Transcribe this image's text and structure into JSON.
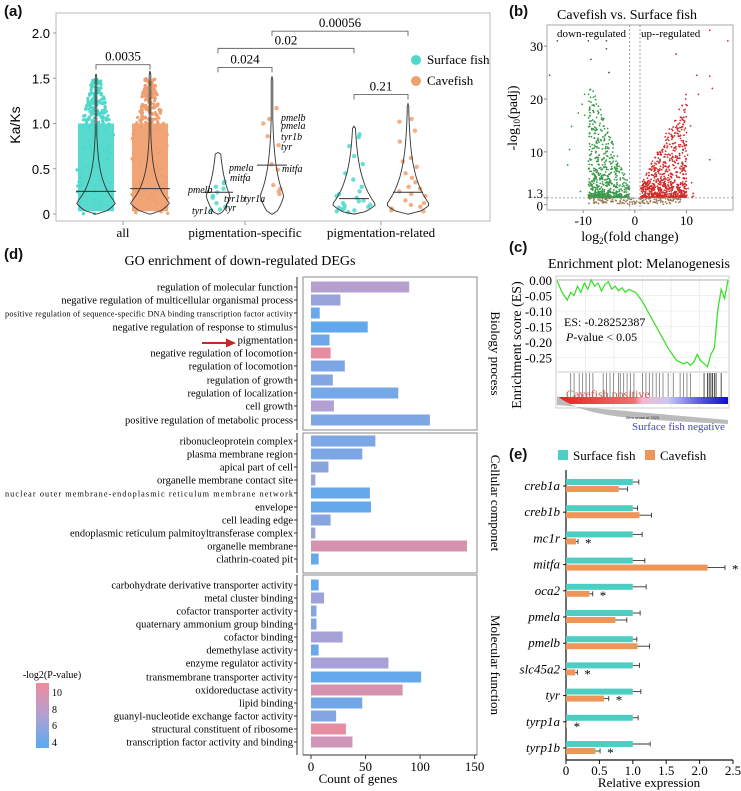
{
  "chart_data": [
    {
      "id": "a",
      "panel_label": "(a)",
      "type": "violin",
      "ylabel": "Ka/Ks",
      "ylim": [
        0,
        2.2
      ],
      "yticks": [
        "0",
        "0.5",
        "1.0",
        "1.5",
        "2.0"
      ],
      "ytick_values": [
        0,
        0.5,
        1.0,
        1.5,
        2.0
      ],
      "categories": [
        "all",
        "pigmentation-specific",
        "pigmentation-related"
      ],
      "legend": [
        {
          "name": "Surface fish",
          "color": "#4fd8cc"
        },
        {
          "name": "Cavefish",
          "color": "#f0a070"
        }
      ],
      "legend_position": "right",
      "groups": [
        {
          "category": "all",
          "series": "Surface fish",
          "median": 0.25,
          "max": 1.55
        },
        {
          "category": "all",
          "series": "Cavefish",
          "median": 0.28,
          "max": 1.58
        },
        {
          "category": "pigmentation-specific",
          "series": "Surface fish",
          "median": 0.24,
          "max": 0.68,
          "gene_labels": [
            "pmela",
            "mitfa",
            "pmelb",
            "tyr1b",
            "tyr",
            "tyr1a"
          ],
          "points": [
            0.36,
            0.34,
            0.3,
            0.28,
            0.24,
            0.2,
            0.18,
            0.12,
            0.08,
            0.05,
            0.04
          ]
        },
        {
          "category": "pigmentation-specific",
          "series": "Cavefish",
          "median": 0.54,
          "max": 1.52,
          "gene_labels": [
            "pmelb",
            "pmela",
            "tyr1b",
            "tyr",
            "mitfa",
            "tyr1a"
          ],
          "points": [
            1.17,
            1.05,
            1.0,
            0.86,
            0.76,
            0.55,
            0.49,
            0.32,
            0.28,
            0.25,
            0.22
          ]
        },
        {
          "category": "pigmentation-related",
          "series": "Surface fish",
          "median": 0.17,
          "max": 0.97,
          "points": [
            0.88,
            0.85,
            0.75,
            0.64,
            0.55,
            0.45,
            0.38,
            0.3,
            0.25,
            0.22,
            0.2,
            0.18,
            0.15,
            0.14,
            0.12,
            0.1,
            0.09,
            0.08,
            0.07,
            0.06,
            0.05,
            0.04,
            0.03,
            0.02
          ]
        },
        {
          "category": "pigmentation-related",
          "series": "Cavefish",
          "median": 0.24,
          "max": 1.22,
          "points": [
            1.05,
            1.02,
            0.92,
            0.8,
            0.62,
            0.58,
            0.52,
            0.45,
            0.4,
            0.35,
            0.3,
            0.28,
            0.25,
            0.22,
            0.2,
            0.15,
            0.12,
            0.1,
            0.08,
            0.06,
            0.04,
            0.03
          ]
        }
      ],
      "comparisons": [
        {
          "label": "0.0035",
          "from": "all/Surface fish",
          "to": "all/Cavefish",
          "y": 1.65
        },
        {
          "label": "0.024",
          "from": "pigmentation-specific/Surface fish",
          "to": "pigmentation-specific/Cavefish",
          "y": 1.62
        },
        {
          "label": "0.02",
          "from": "pigmentation-specific/Surface fish",
          "to": "pigmentation-related/Surface fish",
          "y": 1.83
        },
        {
          "label": "0.00056",
          "from": "pigmentation-specific/Cavefish",
          "to": "pigmentation-related/Cavefish",
          "y": 2.02
        },
        {
          "label": "0.21",
          "from": "pigmentation-related/Surface fish",
          "to": "pigmentation-related/Cavefish",
          "y": 1.32
        }
      ]
    },
    {
      "id": "b",
      "panel_label": "(b)",
      "type": "scatter",
      "title": "Cavefish vs. Surface fish",
      "xlabel": "log2(fold change)",
      "ylabel": "-log10(padj)",
      "xlim": [
        -17,
        19
      ],
      "ylim": [
        -1,
        34
      ],
      "xticks": [
        "-10",
        "0",
        "10"
      ],
      "xtick_values": [
        -10,
        0,
        10
      ],
      "yticks": [
        "0",
        "1.3",
        "10",
        "20",
        "30"
      ],
      "ytick_values": [
        0,
        1.3,
        10,
        20,
        30
      ],
      "threshold_y": 1.3,
      "threshold_x": [
        -1,
        1
      ],
      "annotations": [
        "down-regulated",
        "up--regulated"
      ],
      "colors": {
        "down": "#3a9a4a",
        "up": "#d42a2a",
        "ns": "#9a7a52"
      },
      "outliers": [
        {
          "x": -15,
          "y": 31
        },
        {
          "x": -9,
          "y": 31
        },
        {
          "x": -5.5,
          "y": 31
        },
        {
          "x": -5.5,
          "y": 29.5
        },
        {
          "x": -8.5,
          "y": 27.5
        },
        {
          "x": -16.5,
          "y": 24.5
        },
        {
          "x": -5,
          "y": 25
        },
        {
          "x": 18,
          "y": 31
        },
        {
          "x": 14.5,
          "y": 33
        },
        {
          "x": 8,
          "y": 28.5
        },
        {
          "x": 12,
          "y": 24.5
        },
        {
          "x": 14.5,
          "y": 24.3
        },
        {
          "x": 15,
          "y": 22
        },
        {
          "x": 14.5,
          "y": 8.5
        },
        {
          "x": -13,
          "y": 7.5
        }
      ]
    },
    {
      "id": "c",
      "panel_label": "(c)",
      "type": "line",
      "title": "Enrichment plot: Melanogenesis",
      "ylabel": "Enrichment score (ES)",
      "ylim": [
        -0.3,
        0.01
      ],
      "yticks": [
        "0.00",
        "-0.05",
        "-0.10",
        "-0.15",
        "-0.20",
        "-0.25"
      ],
      "ytick_values": [
        0,
        -0.05,
        -0.1,
        -0.15,
        -0.2,
        -0.25
      ],
      "annotation_es": "ES: -0.28252387",
      "annotation_p": "P-value < 0.05",
      "line_color": "#33dd22",
      "x": [
        0,
        0.03,
        0.06,
        0.08,
        0.1,
        0.12,
        0.14,
        0.16,
        0.18,
        0.2,
        0.22,
        0.24,
        0.26,
        0.28,
        0.3,
        0.32,
        0.34,
        0.36,
        0.38,
        0.4,
        0.42,
        0.44,
        0.46,
        0.5,
        0.55,
        0.6,
        0.65,
        0.7,
        0.72,
        0.74,
        0.76,
        0.78,
        0.8,
        0.82,
        0.84,
        0.86,
        0.88,
        0.9,
        0.92,
        0.94,
        0.96,
        0.98,
        1.0
      ],
      "values": [
        -0.002,
        -0.04,
        -0.065,
        -0.04,
        -0.05,
        -0.02,
        -0.04,
        -0.01,
        -0.03,
        0.0,
        -0.02,
        -0.01,
        -0.035,
        -0.015,
        -0.005,
        -0.03,
        -0.02,
        -0.035,
        -0.025,
        -0.04,
        -0.03,
        -0.035,
        -0.04,
        -0.07,
        -0.12,
        -0.17,
        -0.22,
        -0.26,
        -0.265,
        -0.27,
        -0.265,
        -0.275,
        -0.265,
        -0.24,
        -0.26,
        -0.27,
        -0.28,
        -0.24,
        -0.22,
        -0.1,
        -0.03,
        -0.06,
        0.0
      ],
      "hits": [
        0.08,
        0.1,
        0.13,
        0.15,
        0.17,
        0.19,
        0.21,
        0.27,
        0.29,
        0.31,
        0.33,
        0.36,
        0.37,
        0.39,
        0.41,
        0.43,
        0.45,
        0.5,
        0.52,
        0.54,
        0.56,
        0.58,
        0.6,
        0.62,
        0.65,
        0.68,
        0.72,
        0.74,
        0.76,
        0.78,
        0.86,
        0.88,
        0.89,
        0.9,
        0.91,
        0.92,
        0.93,
        0.96
      ],
      "label_positive": "Cavefish positive",
      "label_negative": "Surface fish negative",
      "zero_cross_label": "Zero cross at 7825"
    },
    {
      "id": "d",
      "panel_label": "(d)",
      "type": "bar",
      "orientation": "horizontal",
      "title": "GO enrichment of down-regulated DEGs",
      "xlabel": "Count of genes",
      "xlim": [
        0,
        150
      ],
      "xticks": [
        "0",
        "50",
        "100",
        "150"
      ],
      "xtick_values": [
        0,
        50,
        100,
        150
      ],
      "color_legend_title": "-log2(P-value)",
      "color_legend_ticks": [
        "10",
        "8",
        "6",
        "4"
      ],
      "color_legend_values": [
        10,
        8,
        6,
        4
      ],
      "color_range": [
        3.5,
        11
      ],
      "color_low": "#5aaaf0",
      "color_high": "#f08a9a",
      "highlight_arrow_target": "pigmentation",
      "groups": [
        {
          "name": "Biology process",
          "terms": [
            {
              "term": "regulation of molecular function",
              "count": 90,
              "logp": 7.5
            },
            {
              "term": "negative regulation of multicellular organismal process",
              "count": 27,
              "logp": 6.2
            },
            {
              "term": "positive regulation of sequence-specific DNA binding transcription factor activity",
              "count": 8,
              "logp": 4.2
            },
            {
              "term": "negative regulation of response to stimulus",
              "count": 52,
              "logp": 3.8
            },
            {
              "term": "pigmentation",
              "count": 17,
              "logp": 4.5
            },
            {
              "term": "negative regulation of locomotion",
              "count": 18,
              "logp": 10.5
            },
            {
              "term": "regulation of locomotion",
              "count": 31,
              "logp": 5.0
            },
            {
              "term": "regulation of growth",
              "count": 20,
              "logp": 5.3
            },
            {
              "term": "regulation of localization",
              "count": 80,
              "logp": 4.7
            },
            {
              "term": "cell growth",
              "count": 21,
              "logp": 7.3
            },
            {
              "term": "positive regulation of metabolic process",
              "count": 109,
              "logp": 5.0
            }
          ]
        },
        {
          "name": "Cellular componet",
          "terms": [
            {
              "term": "ribonucleoprotein complex",
              "count": 59,
              "logp": 5.0
            },
            {
              "term": "plasma membrane region",
              "count": 47,
              "logp": 5.0
            },
            {
              "term": "apical part of cell",
              "count": 16,
              "logp": 5.6
            },
            {
              "term": "organelle membrane contact site",
              "count": 4,
              "logp": 6.3
            },
            {
              "term": "nuclear outer membrane-endoplasmic reticulum membrane network",
              "count": 54,
              "logp": 4.0
            },
            {
              "term": "envelope",
              "count": 55,
              "logp": 4.0
            },
            {
              "term": "cell leading edge",
              "count": 18,
              "logp": 5.6
            },
            {
              "term": "endoplasmic reticulum palmitoyltransferase complex",
              "count": 4,
              "logp": 6.3
            },
            {
              "term": "organelle membrane",
              "count": 143,
              "logp": 9.5
            },
            {
              "term": "clathrin-coated pit",
              "count": 7,
              "logp": 4.0
            }
          ]
        },
        {
          "name": "Molecular function",
          "terms": [
            {
              "term": "carbohydrate derivative transporter activity",
              "count": 7,
              "logp": 4.0
            },
            {
              "term": "metal cluster binding",
              "count": 12,
              "logp": 6.5
            },
            {
              "term": "cofactor transporter activity",
              "count": 5,
              "logp": 5.3
            },
            {
              "term": "quaternary ammonium group binding",
              "count": 5,
              "logp": 5.3
            },
            {
              "term": "cofactor binding",
              "count": 29,
              "logp": 6.8
            },
            {
              "term": "demethylase activity",
              "count": 7,
              "logp": 4.2
            },
            {
              "term": "enzyme regulator activity",
              "count": 71,
              "logp": 6.8
            },
            {
              "term": "transmembrane transporter activity",
              "count": 101,
              "logp": 4.0
            },
            {
              "term": "oxidoreductase activity",
              "count": 84,
              "logp": 9.5
            },
            {
              "term": "lipid binding",
              "count": 47,
              "logp": 4.5
            },
            {
              "term": "guanyl-nucleotide exchange factor activity",
              "count": 23,
              "logp": 5.3
            },
            {
              "term": "structural constituent of ribosome",
              "count": 32,
              "logp": 10.5
            },
            {
              "term": "transcription factor activity and binding",
              "count": 38,
              "logp": 9.0
            }
          ]
        }
      ]
    },
    {
      "id": "e",
      "panel_label": "(e)",
      "type": "bar",
      "orientation": "horizontal",
      "xlabel": "Relative expression",
      "xlim": [
        0,
        2.5
      ],
      "xticks": [
        "0",
        "0.5",
        "1.0",
        "1.5",
        "2.0",
        "2.5"
      ],
      "xtick_values": [
        0,
        0.5,
        1.0,
        1.5,
        2.0,
        2.5
      ],
      "legend_position": "top",
      "categories": [
        "creb1a",
        "creb1b",
        "mc1r",
        "mitfa",
        "oca2",
        "pmela",
        "pmelb",
        "slc45a2",
        "tyr",
        "tyrp1a",
        "tyrp1b"
      ],
      "series": [
        {
          "name": "Surface fish",
          "color": "#4ccfc2",
          "values": [
            1.0,
            1.0,
            1.0,
            1.0,
            1.0,
            1.0,
            1.0,
            1.0,
            1.0,
            1.0,
            1.0
          ],
          "errors": [
            0.09,
            0.07,
            0.14,
            0.18,
            0.2,
            0.11,
            0.06,
            0.1,
            0.12,
            0.08,
            0.26
          ]
        },
        {
          "name": "Cavefish",
          "color": "#ee955a",
          "values": [
            0.79,
            1.1,
            0.15,
            2.12,
            0.35,
            0.74,
            1.07,
            0.14,
            0.57,
            0.01,
            0.44
          ],
          "errors": [
            0.13,
            0.18,
            0.03,
            0.26,
            0.05,
            0.17,
            0.18,
            0.03,
            0.07,
            0.0,
            0.07
          ],
          "significant": [
            false,
            false,
            true,
            true,
            true,
            false,
            false,
            true,
            true,
            true,
            true
          ]
        }
      ],
      "significance_marker": "*"
    }
  ]
}
